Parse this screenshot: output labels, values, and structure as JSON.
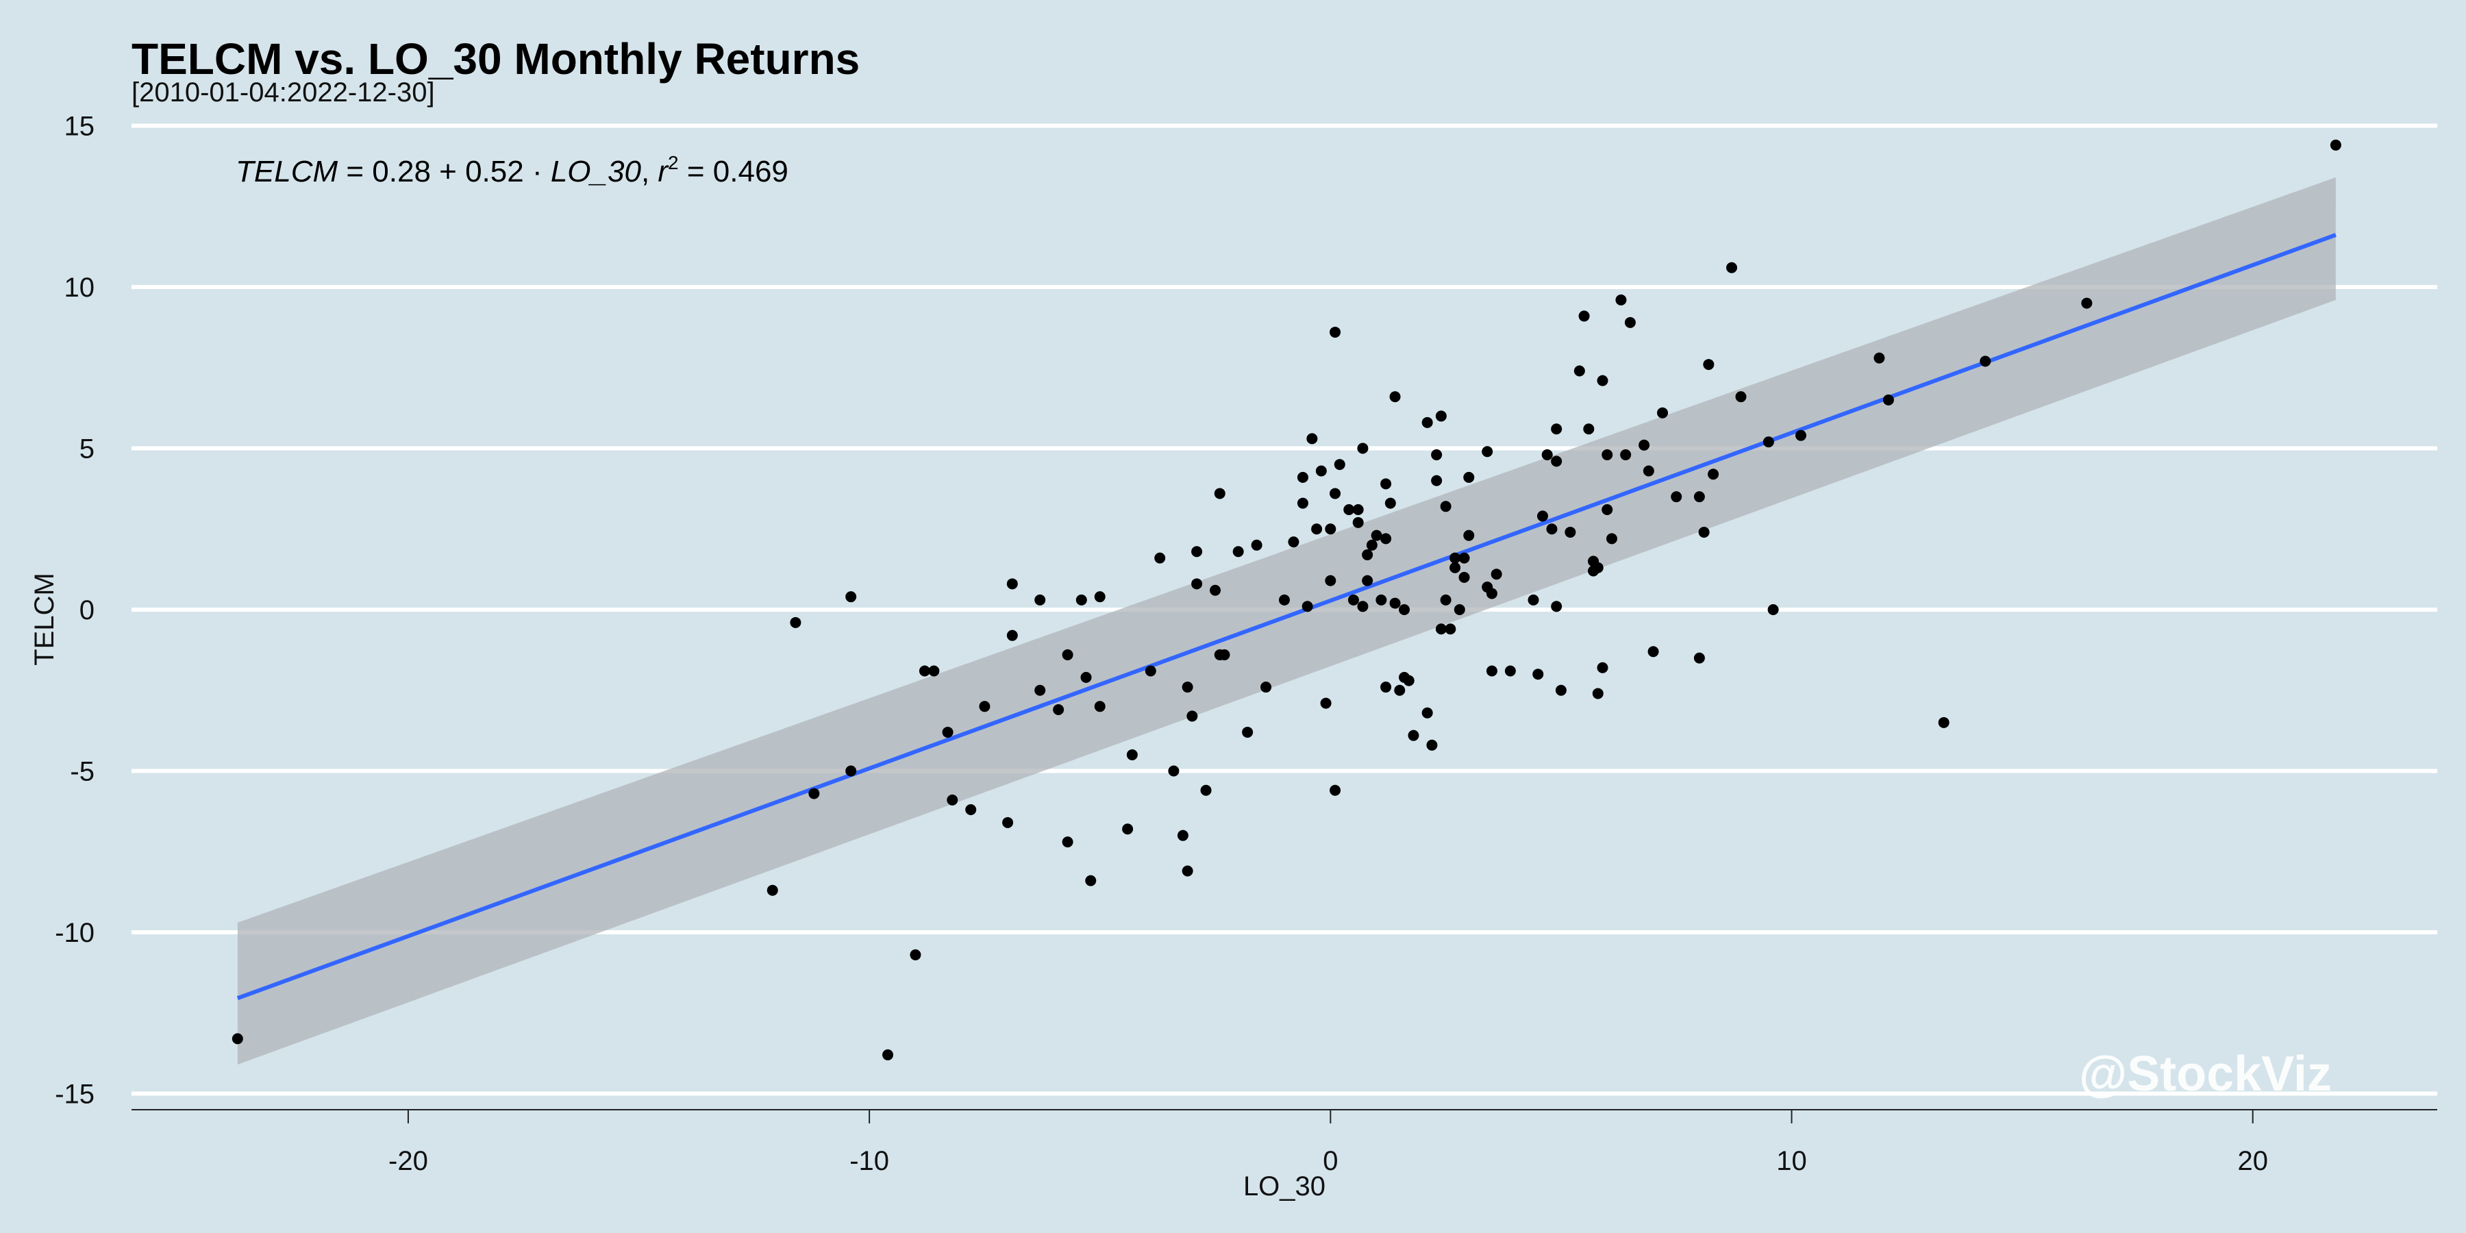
{
  "chart_data": {
    "type": "scatter",
    "title": "TELCM vs. LO_30 Monthly Returns",
    "subtitle": "[2010-01-04:2022-12-30]",
    "xlabel": "LO_30",
    "ylabel": "TELCM",
    "xlim": [
      -26,
      24
    ],
    "ylim": [
      -15.5,
      15.5
    ],
    "x_ticks": [
      -20,
      -10,
      0,
      10,
      20
    ],
    "x_tick_labels": [
      "-20",
      "-10",
      "0",
      "10",
      "20"
    ],
    "y_ticks": [
      15,
      10,
      5,
      0,
      -5,
      -10,
      -15
    ],
    "y_tick_labels": [
      "15",
      "10",
      "5",
      "0",
      "-5",
      "-10",
      "-15"
    ],
    "grid": "horizontal",
    "equation": {
      "y_var": "TELCM",
      "intercept": "0.28",
      "slope": "0.52",
      "x_var": "LO_30",
      "r2_label": "r",
      "r2_value": "0.469"
    },
    "fit": {
      "intercept": 0.28,
      "slope": 0.52,
      "x_range": [
        -23.7,
        21.8
      ],
      "ci_left": [
        -14.1,
        -9.7
      ],
      "ci_right": [
        9.6,
        13.4
      ],
      "line_color": "#3366ff",
      "band_color": "#b0b6ba"
    },
    "points": [
      [
        -23.7,
        -13.3
      ],
      [
        -12.1,
        -8.7
      ],
      [
        -11.6,
        -0.4
      ],
      [
        -11.2,
        -5.7
      ],
      [
        -10.4,
        0.4
      ],
      [
        -10.4,
        -5.0
      ],
      [
        -9.6,
        -13.8
      ],
      [
        -9.0,
        -10.7
      ],
      [
        -8.8,
        -1.9
      ],
      [
        -8.6,
        -1.9
      ],
      [
        -8.3,
        -3.8
      ],
      [
        -8.2,
        -5.9
      ],
      [
        -7.8,
        -6.2
      ],
      [
        -7.5,
        -3.0
      ],
      [
        -7.0,
        -6.6
      ],
      [
        -6.9,
        0.8
      ],
      [
        -6.9,
        -0.8
      ],
      [
        -6.3,
        -2.5
      ],
      [
        -6.3,
        0.3
      ],
      [
        -5.9,
        -3.1
      ],
      [
        -5.7,
        -1.4
      ],
      [
        -5.7,
        -7.2
      ],
      [
        -5.4,
        0.3
      ],
      [
        -5.3,
        -2.1
      ],
      [
        -5.2,
        -8.4
      ],
      [
        -5.0,
        0.4
      ],
      [
        -5.0,
        -3.0
      ],
      [
        -4.4,
        -6.8
      ],
      [
        -4.3,
        -4.5
      ],
      [
        -3.9,
        -1.9
      ],
      [
        -3.7,
        1.6
      ],
      [
        -3.4,
        -5.0
      ],
      [
        -3.2,
        -7.0
      ],
      [
        -3.1,
        -8.1
      ],
      [
        -3.1,
        -2.4
      ],
      [
        -3.0,
        -3.3
      ],
      [
        -2.9,
        0.8
      ],
      [
        -2.9,
        1.8
      ],
      [
        -2.7,
        -5.6
      ],
      [
        -2.5,
        0.6
      ],
      [
        -2.4,
        -1.4
      ],
      [
        -2.4,
        3.6
      ],
      [
        -2.3,
        -1.4
      ],
      [
        -2.0,
        1.8
      ],
      [
        -1.8,
        -3.8
      ],
      [
        -1.6,
        2.0
      ],
      [
        -1.4,
        -2.4
      ],
      [
        -1.0,
        0.3
      ],
      [
        -0.8,
        2.1
      ],
      [
        -0.6,
        3.3
      ],
      [
        -0.6,
        4.1
      ],
      [
        -0.5,
        0.1
      ],
      [
        -0.4,
        5.3
      ],
      [
        -0.3,
        2.5
      ],
      [
        -0.2,
        4.3
      ],
      [
        -0.1,
        -2.9
      ],
      [
        0.0,
        2.5
      ],
      [
        0.0,
        0.9
      ],
      [
        0.1,
        -5.6
      ],
      [
        0.1,
        3.6
      ],
      [
        0.1,
        8.6
      ],
      [
        0.2,
        4.5
      ],
      [
        0.4,
        3.1
      ],
      [
        0.5,
        0.3
      ],
      [
        0.6,
        3.1
      ],
      [
        0.6,
        2.7
      ],
      [
        0.7,
        0.1
      ],
      [
        0.7,
        5.0
      ],
      [
        0.8,
        0.9
      ],
      [
        0.8,
        1.7
      ],
      [
        0.9,
        2.0
      ],
      [
        1.0,
        2.3
      ],
      [
        1.1,
        0.3
      ],
      [
        1.2,
        3.9
      ],
      [
        1.2,
        2.2
      ],
      [
        1.2,
        -2.4
      ],
      [
        1.3,
        3.3
      ],
      [
        1.4,
        6.6
      ],
      [
        1.4,
        0.2
      ],
      [
        1.5,
        -2.5
      ],
      [
        1.6,
        0.0
      ],
      [
        1.6,
        -2.1
      ],
      [
        1.7,
        -2.2
      ],
      [
        1.8,
        -3.9
      ],
      [
        2.1,
        5.8
      ],
      [
        2.1,
        -3.2
      ],
      [
        2.2,
        -4.2
      ],
      [
        2.3,
        4.0
      ],
      [
        2.3,
        4.8
      ],
      [
        2.4,
        6.0
      ],
      [
        2.4,
        -0.6
      ],
      [
        2.5,
        3.2
      ],
      [
        2.5,
        0.3
      ],
      [
        2.6,
        -0.6
      ],
      [
        2.7,
        1.3
      ],
      [
        2.7,
        1.6
      ],
      [
        2.8,
        0.0
      ],
      [
        2.9,
        1.6
      ],
      [
        2.9,
        1.0
      ],
      [
        3.0,
        4.1
      ],
      [
        3.0,
        2.3
      ],
      [
        3.4,
        0.7
      ],
      [
        3.4,
        4.9
      ],
      [
        3.5,
        0.5
      ],
      [
        3.5,
        -1.9
      ],
      [
        3.6,
        1.1
      ],
      [
        3.9,
        -1.9
      ],
      [
        4.4,
        0.3
      ],
      [
        4.5,
        -2.0
      ],
      [
        4.6,
        2.9
      ],
      [
        4.7,
        4.8
      ],
      [
        4.8,
        2.5
      ],
      [
        4.9,
        4.6
      ],
      [
        4.9,
        5.6
      ],
      [
        4.9,
        0.1
      ],
      [
        5.0,
        -2.5
      ],
      [
        5.2,
        2.4
      ],
      [
        5.4,
        7.4
      ],
      [
        5.5,
        9.1
      ],
      [
        5.6,
        5.6
      ],
      [
        5.7,
        1.2
      ],
      [
        5.7,
        1.5
      ],
      [
        5.8,
        1.3
      ],
      [
        5.8,
        -2.6
      ],
      [
        5.9,
        7.1
      ],
      [
        5.9,
        -1.8
      ],
      [
        6.0,
        3.1
      ],
      [
        6.0,
        4.8
      ],
      [
        6.1,
        2.2
      ],
      [
        6.3,
        9.6
      ],
      [
        6.4,
        4.8
      ],
      [
        6.5,
        8.9
      ],
      [
        6.8,
        5.1
      ],
      [
        6.9,
        4.3
      ],
      [
        7.0,
        -1.3
      ],
      [
        7.2,
        6.1
      ],
      [
        7.5,
        3.5
      ],
      [
        8.0,
        3.5
      ],
      [
        8.0,
        -1.5
      ],
      [
        8.1,
        2.4
      ],
      [
        8.2,
        7.6
      ],
      [
        8.3,
        4.2
      ],
      [
        8.7,
        10.6
      ],
      [
        8.9,
        6.6
      ],
      [
        9.5,
        5.2
      ],
      [
        9.6,
        0.0
      ],
      [
        10.2,
        5.4
      ],
      [
        11.9,
        7.8
      ],
      [
        12.1,
        6.5
      ],
      [
        13.3,
        -3.5
      ],
      [
        14.2,
        7.7
      ],
      [
        16.4,
        9.5
      ],
      [
        21.8,
        14.4
      ]
    ]
  },
  "watermark": "@StockViz"
}
